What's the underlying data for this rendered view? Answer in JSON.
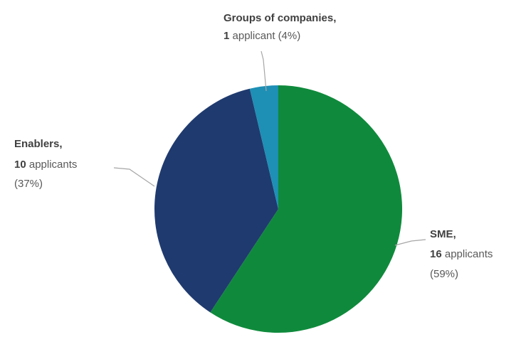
{
  "chart_data": {
    "type": "pie",
    "slices": [
      {
        "category": "SME,",
        "value_num": "16",
        "value_unit": " applicants",
        "value": 16,
        "percent": "(59%)",
        "color": "#0f8a3c"
      },
      {
        "category": "Enablers,",
        "value_num": "10",
        "value_unit": " applicants",
        "value": 10,
        "percent": "(37%)",
        "color": "#1f3a6e"
      },
      {
        "category": "Groups of companies,",
        "value_num": "1",
        "value_unit": " applicant",
        "value": 1,
        "percent": "(4%)",
        "color": "#1e8fb5"
      }
    ],
    "legend": "none",
    "start_angle_deg": 0,
    "direction": "clockwise"
  }
}
